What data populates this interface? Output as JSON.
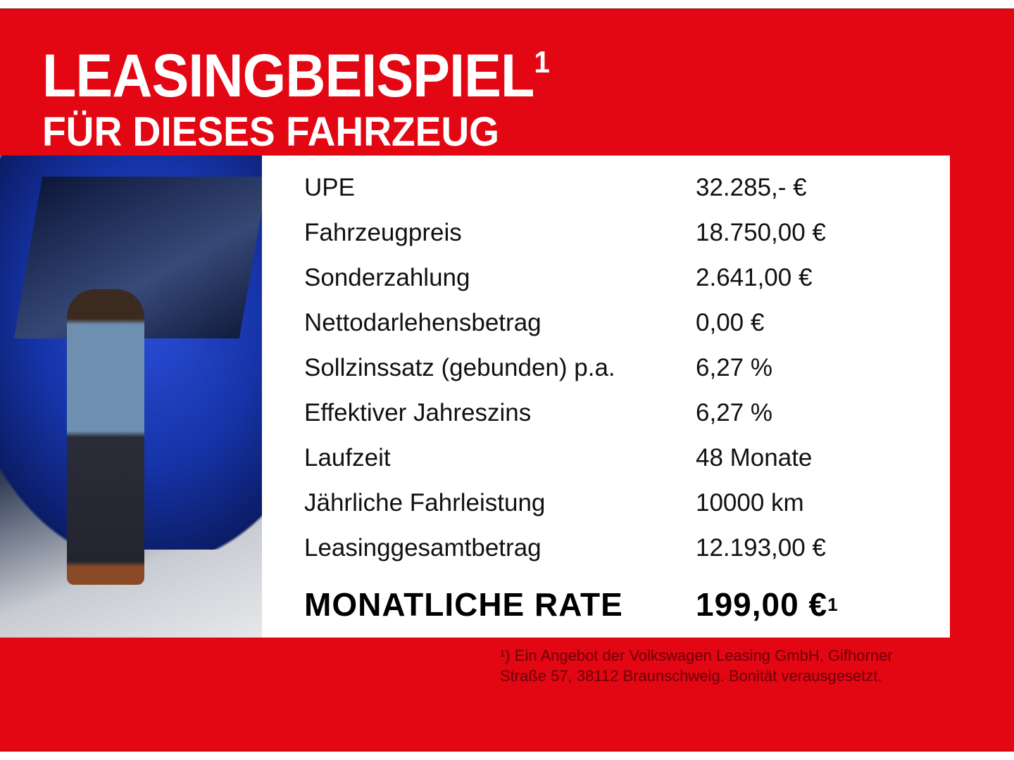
{
  "header": {
    "title": "LEASINGBEISPIEL",
    "title_sup": "1",
    "subtitle": "FÜR DIESES FAHRZEUG"
  },
  "colors": {
    "brand_red": "#e30613",
    "footnote": "#6b0007"
  },
  "image": {
    "subject": "blue-car-with-man-photo"
  },
  "rows": [
    {
      "label": "UPE",
      "value": "32.285,- €"
    },
    {
      "label": "Fahrzeugpreis",
      "value": "18.750,00 €"
    },
    {
      "label": "Sonderzahlung",
      "value": "2.641,00 €"
    },
    {
      "label": "Nettodarlehensbetrag",
      "value": "0,00 €"
    },
    {
      "label": "Sollzinssatz (gebunden) p.a.",
      "value": "6,27 %"
    },
    {
      "label": "Effektiver Jahreszins",
      "value": "6,27 %"
    },
    {
      "label": "Laufzeit",
      "value": "48 Monate"
    },
    {
      "label": "Jährliche Fahrleistung",
      "value": "10000 km"
    },
    {
      "label": "Leasinggesamtbetrag",
      "value": "12.193,00 €"
    }
  ],
  "monthly": {
    "label": "MONATLICHE RATE",
    "value": "199,00 €",
    "sup": "1"
  },
  "footnote": {
    "line1": "¹) Ein Angebot der Volkswagen Leasing GmbH, Gifhorner",
    "line2": "Straße 57, 38112 Braunschweig. Bonität verausgesetzt."
  }
}
